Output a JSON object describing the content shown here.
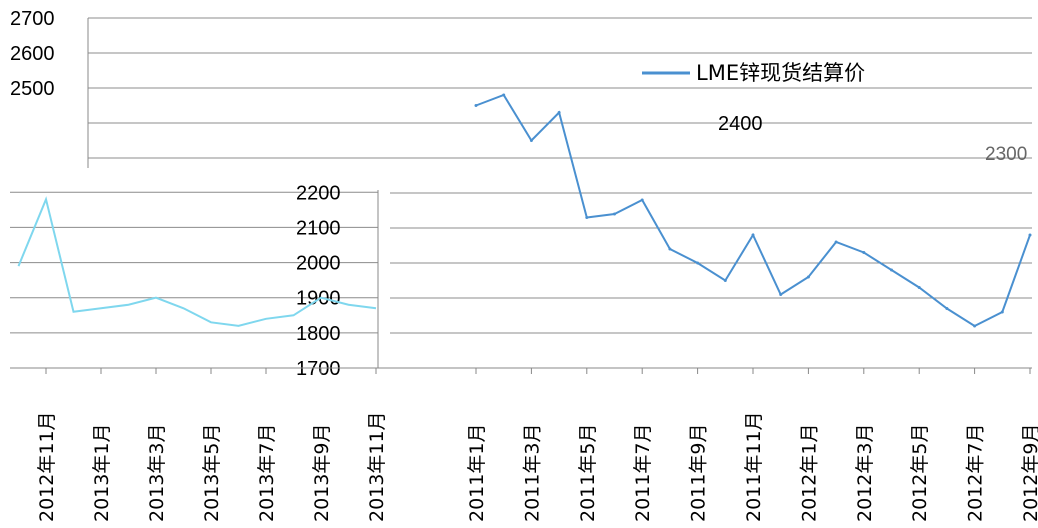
{
  "chart_data": [
    {
      "type": "line",
      "title": "",
      "xlabel": "",
      "ylabel": "",
      "ylim": [
        1700,
        2700
      ],
      "y_ticks": [
        "2700",
        "2600",
        "2500",
        "2400",
        "2300",
        "2200",
        "2100",
        "2000",
        "1900",
        "1800",
        "1700"
      ],
      "legend": {
        "placement": "top-right",
        "entries": [
          "LME锌现货结算价"
        ]
      },
      "grid": true,
      "series": [
        {
          "name": "LME锌现货结算价",
          "color": "#4a90d0",
          "x": [
            "2011-01",
            "2011-02",
            "2011-03",
            "2011-04",
            "2011-05",
            "2011-06",
            "2011-07",
            "2011-08",
            "2011-09",
            "2011-10",
            "2011-11",
            "2011-12",
            "2012-01",
            "2012-02",
            "2012-03",
            "2012-04",
            "2012-05",
            "2012-06",
            "2012-07",
            "2012-08",
            "2012-09"
          ],
          "y": [
            2450,
            2480,
            2350,
            2430,
            2130,
            2140,
            2180,
            2040,
            2000,
            1950,
            2080,
            1910,
            1960,
            2060,
            2030,
            1980,
            1930,
            1870,
            1820,
            1860,
            2080
          ]
        }
      ]
    },
    {
      "type": "line",
      "title": "",
      "xlabel": "",
      "ylabel": "",
      "ylim": [
        1700,
        2400
      ],
      "y_ticks": [
        "2400",
        "2300",
        "2200",
        "2100",
        "2000",
        "1900",
        "1800",
        "1700"
      ],
      "grid": true,
      "series": [
        {
          "color": "#7fd7ee",
          "x": [
            "2012-10",
            "2012-11",
            "2012-12",
            "2013-01",
            "2013-02",
            "2013-03",
            "2013-04",
            "2013-05",
            "2013-06",
            "2013-07",
            "2013-08",
            "2013-09",
            "2013-10",
            "2013-11"
          ],
          "y": [
            1990,
            2180,
            1860,
            1870,
            1880,
            1900,
            1870,
            1830,
            1820,
            1840,
            1850,
            1900,
            1880,
            1870
          ]
        }
      ]
    }
  ],
  "x_ticks_left": [
    "2012年11月",
    "2013年1月",
    "2013年3月",
    "2013年5月",
    "2013年7月",
    "2013年9月",
    "2013年11月"
  ],
  "x_ticks_right": [
    "2011年1月",
    "2011年3月",
    "2011年5月",
    "2011年7月",
    "2011年9月",
    "2011年11月",
    "2012年1月",
    "2012年3月",
    "2012年5月",
    "2012年7月",
    "2012年9月"
  ],
  "overlay_label": "2400",
  "overlay_label_2": "2300"
}
